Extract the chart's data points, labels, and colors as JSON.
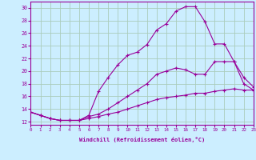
{
  "xlabel": "Windchill (Refroidissement éolien,°C)",
  "bg_color": "#cceeff",
  "grid_color": "#aaccbb",
  "line_color": "#990099",
  "xmin": 0,
  "xmax": 23,
  "ymin": 11.5,
  "ymax": 31.0,
  "yticks": [
    12,
    14,
    16,
    18,
    20,
    22,
    24,
    26,
    28,
    30
  ],
  "curve1_x": [
    0,
    1,
    2,
    3,
    4,
    5,
    6,
    7,
    8,
    9,
    10,
    11,
    12,
    13,
    14,
    15,
    16,
    17,
    18,
    19,
    20,
    21,
    22,
    23
  ],
  "curve1_y": [
    13.5,
    13.0,
    12.5,
    12.2,
    12.2,
    12.2,
    13.0,
    16.8,
    19.0,
    21.0,
    22.5,
    23.0,
    24.2,
    26.5,
    27.5,
    29.5,
    30.2,
    30.2,
    27.8,
    24.3,
    24.3,
    21.5,
    18.0,
    17.0
  ],
  "curve2_x": [
    0,
    1,
    2,
    3,
    4,
    5,
    6,
    7,
    8,
    9,
    10,
    11,
    12,
    13,
    14,
    15,
    16,
    17,
    18,
    19,
    20,
    21,
    22,
    23
  ],
  "curve2_y": [
    13.5,
    13.0,
    12.5,
    12.2,
    12.2,
    12.2,
    12.8,
    13.2,
    14.0,
    15.0,
    16.0,
    17.0,
    18.0,
    19.5,
    20.0,
    20.5,
    20.2,
    19.5,
    19.5,
    21.5,
    21.5,
    21.5,
    19.0,
    17.5
  ],
  "curve3_x": [
    0,
    1,
    2,
    3,
    4,
    5,
    6,
    7,
    8,
    9,
    10,
    11,
    12,
    13,
    14,
    15,
    16,
    17,
    18,
    19,
    20,
    21,
    22,
    23
  ],
  "curve3_y": [
    13.5,
    13.0,
    12.5,
    12.2,
    12.2,
    12.2,
    12.5,
    12.8,
    13.2,
    13.5,
    14.0,
    14.5,
    15.0,
    15.5,
    15.8,
    16.0,
    16.2,
    16.5,
    16.5,
    16.8,
    17.0,
    17.2,
    17.0,
    17.0
  ]
}
